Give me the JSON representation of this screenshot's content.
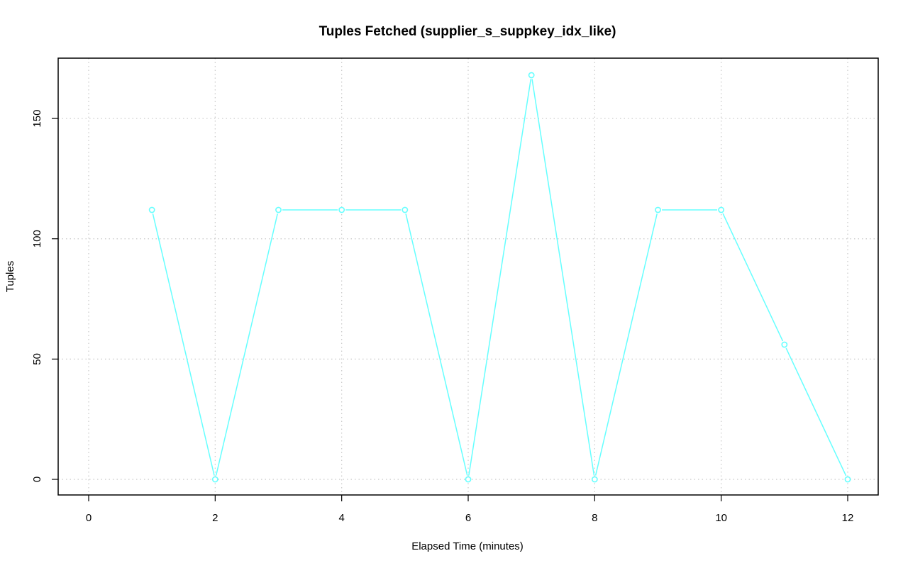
{
  "chart_data": {
    "type": "line",
    "title": "Tuples Fetched (supplier_s_suppkey_idx_like)",
    "xlabel": "Elapsed Time (minutes)",
    "ylabel": "Tuples",
    "xlim": [
      0,
      12
    ],
    "ylim": [
      0,
      168
    ],
    "xticks": [
      0,
      2,
      4,
      6,
      8,
      10,
      12
    ],
    "yticks": [
      0,
      50,
      100,
      150
    ],
    "grid": true,
    "legend": "none",
    "series": [
      {
        "color": "#66ffff",
        "x": [
          1,
          2,
          3,
          4,
          5,
          6,
          7,
          8,
          9,
          10,
          11,
          12
        ],
        "y": [
          112,
          0,
          112,
          112,
          112,
          0,
          168,
          0,
          112,
          112,
          56,
          0
        ]
      }
    ]
  }
}
